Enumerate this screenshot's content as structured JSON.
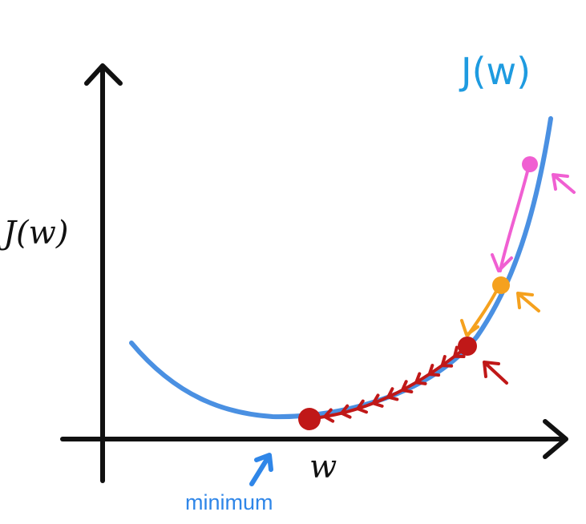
{
  "labels": {
    "y_axis": "J(w)",
    "x_axis": "w",
    "curve": "J(w)",
    "minimum": "minimum"
  },
  "colors": {
    "axis": "#111111",
    "curve": "#4a90e2",
    "curve_label": "#1e9be0",
    "minimum_label": "#2f86e8",
    "step1": "#f05fd2",
    "step2": "#f5a11e",
    "step3": "#c01818"
  },
  "steps_to_minimum": 10
}
